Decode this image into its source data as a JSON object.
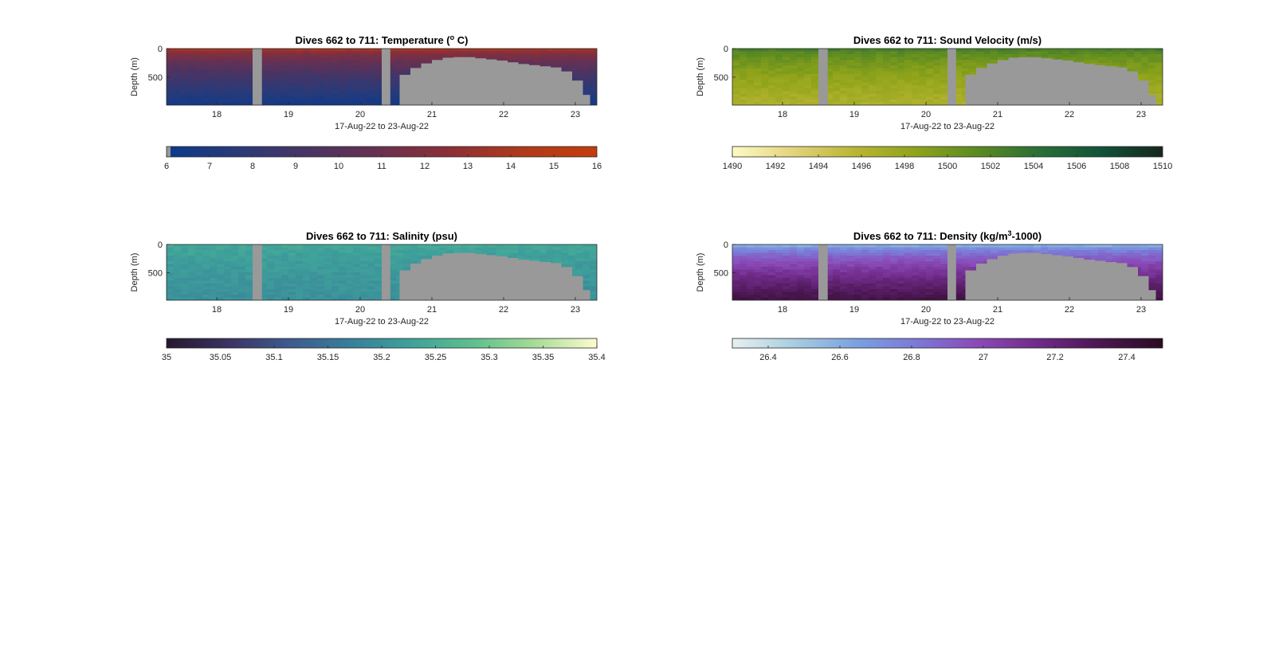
{
  "figure": {
    "colors": {
      "background": "#ffffff",
      "nodata": "#999999",
      "axis": "#262626"
    },
    "chart_data": [
      {
        "type": "heatmap",
        "title_prefix": "Dives 662 to 711: Temperature (",
        "title_sup": "o",
        "title_suffix": " C)",
        "xlabel": "17-Aug-22 to 23-Aug-22",
        "ylabel": "Depth (m)",
        "xticks": [
          "18",
          "19",
          "20",
          "21",
          "22",
          "23"
        ],
        "xtick_values": [
          18,
          19,
          20,
          21,
          22,
          23
        ],
        "xlim": [
          17.3,
          23.3
        ],
        "yticks": [
          "0",
          "500"
        ],
        "ytick_values": [
          0,
          500
        ],
        "ylim": [
          0,
          990
        ],
        "ydir": "reverse",
        "colorbar_ticks": [
          "6",
          "7",
          "8",
          "9",
          "10",
          "11",
          "12",
          "13",
          "14",
          "15",
          "16"
        ],
        "colorbar_values": [
          6,
          7,
          8,
          9,
          10,
          11,
          12,
          13,
          14,
          15,
          16
        ],
        "clim": [
          6,
          16
        ],
        "colormap": [
          "#0b3a8c",
          "#2a3a78",
          "#4a3463",
          "#6a3050",
          "#8e2f35",
          "#b03a1a",
          "#c43d0c"
        ],
        "field": {
          "surface_value": 13.5,
          "deep_value": 6.6
        },
        "gaps": [
          [
            18.5,
            18.63
          ],
          [
            20.3,
            20.42
          ]
        ]
      },
      {
        "type": "heatmap",
        "title_prefix": "Dives 662 to 711: Sound Velocity (m/s)",
        "title_sup": "",
        "title_suffix": "",
        "xlabel": "17-Aug-22 to 23-Aug-22",
        "ylabel": "Depth (m)",
        "xticks": [
          "18",
          "19",
          "20",
          "21",
          "22",
          "23"
        ],
        "xtick_values": [
          18,
          19,
          20,
          21,
          22,
          23
        ],
        "xlim": [
          17.3,
          23.3
        ],
        "yticks": [
          "0",
          "500"
        ],
        "ytick_values": [
          0,
          500
        ],
        "ylim": [
          0,
          990
        ],
        "ydir": "reverse",
        "colorbar_ticks": [
          "1490",
          "1492",
          "1494",
          "1496",
          "1498",
          "1500",
          "1502",
          "1504",
          "1506",
          "1508",
          "1510"
        ],
        "colorbar_values": [
          1490,
          1492,
          1494,
          1496,
          1498,
          1500,
          1502,
          1504,
          1506,
          1508,
          1510
        ],
        "clim": [
          1490,
          1510
        ],
        "colormap": [
          "#fdfbc4",
          "#e3d37a",
          "#b9b532",
          "#8ea31a",
          "#5a8a22",
          "#2a6e36",
          "#12523a",
          "#16261c"
        ],
        "field": {
          "surface_value": 1502.5,
          "deep_value": 1496.5
        },
        "gaps": [
          [
            18.5,
            18.63
          ],
          [
            20.3,
            20.42
          ]
        ]
      },
      {
        "type": "heatmap",
        "title_prefix": "Dives 662 to 711: Salinity (psu)",
        "title_sup": "",
        "title_suffix": "",
        "xlabel": "17-Aug-22 to 23-Aug-22",
        "ylabel": "Depth (m)",
        "xticks": [
          "18",
          "19",
          "20",
          "21",
          "22",
          "23"
        ],
        "xtick_values": [
          18,
          19,
          20,
          21,
          22,
          23
        ],
        "xlim": [
          17.3,
          23.3
        ],
        "yticks": [
          "0",
          "500"
        ],
        "ytick_values": [
          0,
          500
        ],
        "ylim": [
          0,
          990
        ],
        "ydir": "reverse",
        "colorbar_ticks": [
          "35",
          "35.05",
          "35.1",
          "35.15",
          "35.2",
          "35.25",
          "35.3",
          "35.35",
          "35.4"
        ],
        "colorbar_values": [
          35,
          35.05,
          35.1,
          35.15,
          35.2,
          35.25,
          35.3,
          35.35,
          35.4
        ],
        "clim": [
          35,
          35.4
        ],
        "colormap": [
          "#24182e",
          "#3b3262",
          "#3e5a8e",
          "#377f9a",
          "#3fa29a",
          "#5ec08d",
          "#a6dc97",
          "#fdfcce"
        ],
        "field": {
          "surface_value": 35.24,
          "deep_value": 35.2
        },
        "gaps": [
          [
            18.5,
            18.63
          ],
          [
            20.3,
            20.42
          ]
        ]
      },
      {
        "type": "heatmap",
        "title_prefix": "Dives 662 to 711: Density (kg/m",
        "title_sup": "3",
        "title_suffix": "-1000)",
        "xlabel": "17-Aug-22 to 23-Aug-22",
        "ylabel": "Depth (m)",
        "xticks": [
          "18",
          "19",
          "20",
          "21",
          "22",
          "23"
        ],
        "xtick_values": [
          18,
          19,
          20,
          21,
          22,
          23
        ],
        "xlim": [
          17.3,
          23.3
        ],
        "yticks": [
          "0",
          "500"
        ],
        "ytick_values": [
          0,
          500
        ],
        "ylim": [
          0,
          990
        ],
        "ydir": "reverse",
        "colorbar_ticks": [
          "26.4",
          "26.6",
          "26.8",
          "27",
          "27.2",
          "27.4"
        ],
        "colorbar_values": [
          26.4,
          26.6,
          26.8,
          27,
          27.2,
          27.4
        ],
        "clim": [
          26.3,
          27.5
        ],
        "colormap": [
          "#e6f0f0",
          "#a8cde0",
          "#7aa2e0",
          "#7c78d6",
          "#8a4ab8",
          "#6e2a86",
          "#4a1650",
          "#2a0c22"
        ],
        "field": {
          "surface_value": 26.6,
          "deep_value": 27.36
        },
        "gaps": [
          [
            18.5,
            18.63
          ],
          [
            20.3,
            20.42
          ]
        ]
      }
    ],
    "shallow_dive_region": {
      "days": [
        20.42,
        20.55,
        20.7,
        20.85,
        21.0,
        21.15,
        21.3,
        21.45,
        21.6,
        21.75,
        21.9,
        22.05,
        22.2,
        22.35,
        22.5,
        22.65,
        22.8,
        22.95,
        23.1
      ],
      "max_depth_m": [
        990,
        460,
        340,
        260,
        200,
        160,
        150,
        150,
        170,
        190,
        210,
        240,
        270,
        290,
        310,
        330,
        400,
        560,
        810
      ]
    }
  }
}
